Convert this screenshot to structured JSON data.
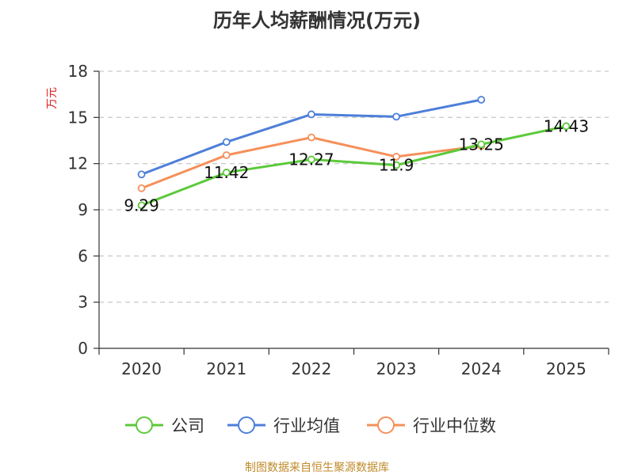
{
  "chart_data": {
    "type": "line",
    "title": "历年人均薪酬情况(万元)",
    "ylabel": "万元",
    "xlabel": "",
    "ylim": [
      0,
      18
    ],
    "yticks": [
      0,
      3,
      6,
      9,
      12,
      15,
      18
    ],
    "categories": [
      "2020",
      "2021",
      "2022",
      "2023",
      "2024",
      "2025"
    ],
    "grid": true,
    "legend_position": "bottom",
    "series": [
      {
        "name": "公司",
        "color": "#5cc93a",
        "values": [
          9.29,
          11.42,
          12.27,
          11.9,
          13.25,
          14.43
        ],
        "labels": [
          "9.29",
          "11.42",
          "12.27",
          "11.9",
          "13.25",
          "14.43"
        ]
      },
      {
        "name": "行业均值",
        "color": "#4e7fd9",
        "values": [
          11.3,
          13.4,
          15.2,
          15.05,
          16.15,
          null
        ]
      },
      {
        "name": "行业中位数",
        "color": "#f5905a",
        "values": [
          10.4,
          12.55,
          13.7,
          12.45,
          13.15,
          null
        ]
      }
    ]
  },
  "footer": {
    "source": "制图数据来自恒生聚源数据库"
  },
  "colors": {
    "ylabel": "#e02020",
    "axis": "#333333",
    "grid": "#cccccc"
  }
}
